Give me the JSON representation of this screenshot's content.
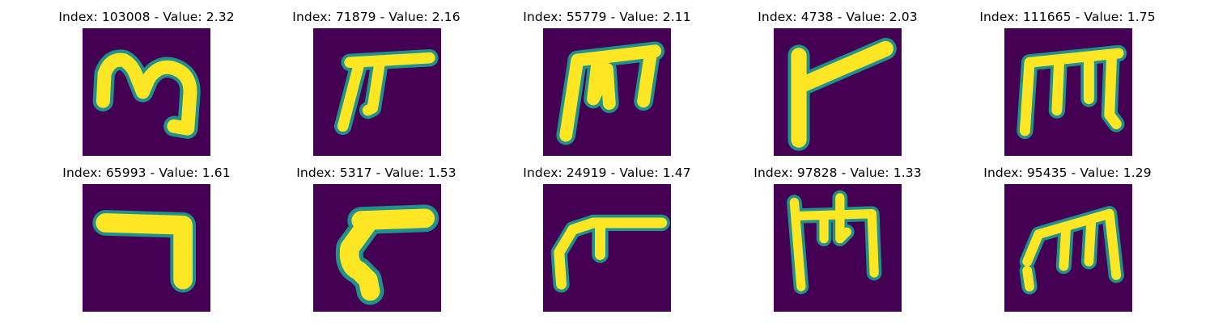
{
  "colormap": {
    "background": "#440154",
    "edge": "#21918c",
    "mid": "#5ec962",
    "foreground": "#fde725"
  },
  "samples": [
    {
      "title": "Index: 103008 - Value: 2.32"
    },
    {
      "title": "Index: 71879 - Value: 2.16"
    },
    {
      "title": "Index: 55779 - Value: 2.11"
    },
    {
      "title": "Index: 4738 - Value: 2.03"
    },
    {
      "title": "Index: 111665 - Value: 1.75"
    },
    {
      "title": "Index: 65993 - Value: 1.61"
    },
    {
      "title": "Index: 5317 - Value: 1.53"
    },
    {
      "title": "Index: 24919 - Value: 1.47"
    },
    {
      "title": "Index: 97828 - Value: 1.33"
    },
    {
      "title": "Index: 95435 - Value: 1.29"
    }
  ]
}
